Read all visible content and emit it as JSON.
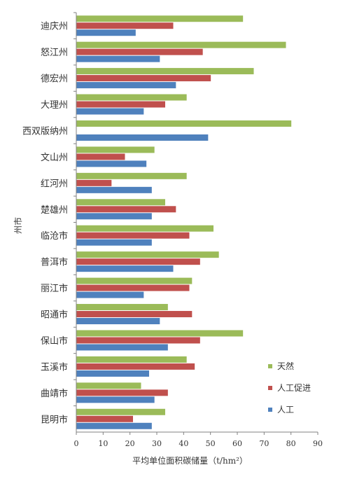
{
  "chart_data": {
    "type": "bar",
    "orientation": "horizontal",
    "categories": [
      "迪庆州",
      "怒江州",
      "德宏州",
      "大理州",
      "西双版纳州",
      "文山州",
      "红河州",
      "楚雄州",
      "临沧市",
      "普洱市",
      "丽江市",
      "昭通市",
      "保山市",
      "玉溪市",
      "曲靖市",
      "昆明市"
    ],
    "series": [
      {
        "name": "天然",
        "color": "#9bbb59",
        "values": [
          62,
          78,
          66,
          41,
          80,
          29,
          41,
          33,
          51,
          53,
          43,
          34,
          62,
          41,
          24,
          33
        ]
      },
      {
        "name": "人工促进",
        "color": "#c0504d",
        "values": [
          36,
          47,
          50,
          33,
          null,
          18,
          13,
          37,
          42,
          46,
          42,
          43,
          46,
          44,
          34,
          21
        ]
      },
      {
        "name": "人工",
        "color": "#4f81bd",
        "values": [
          22,
          31,
          37,
          25,
          49,
          26,
          28,
          28,
          28,
          36,
          25,
          31,
          34,
          27,
          29,
          28
        ]
      }
    ],
    "xlabel": "平均单位面积碳储量（t/hm²）",
    "ylabel": "州市",
    "xlim": [
      0,
      90
    ],
    "xticks": [
      0,
      10,
      20,
      30,
      40,
      50,
      60,
      70,
      80,
      90
    ],
    "grid": false,
    "legend_position": "bottom-right"
  }
}
